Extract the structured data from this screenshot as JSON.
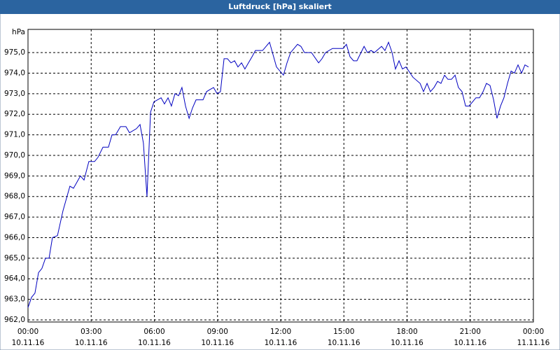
{
  "chart_data": {
    "type": "line",
    "title": "Luftdruck [hPa] skaliert",
    "y_unit": "hPa",
    "x": [
      0,
      0.17,
      0.33,
      0.5,
      0.66,
      0.83,
      1,
      1.16,
      1.4,
      1.66,
      1.99,
      2.16,
      2.49,
      2.66,
      2.89,
      3.16,
      3.32,
      3.56,
      3.82,
      3.99,
      4.16,
      4.39,
      4.65,
      4.82,
      5.15,
      5.32,
      5.48,
      5.65,
      5.82,
      5.98,
      6.32,
      6.48,
      6.65,
      6.81,
      6.98,
      7.15,
      7.31,
      7.48,
      7.65,
      7.81,
      7.98,
      8.31,
      8.48,
      8.64,
      8.81,
      8.98,
      9.14,
      9.31,
      9.47,
      9.64,
      9.81,
      9.97,
      10.14,
      10.3,
      10.47,
      10.64,
      10.8,
      11.14,
      11.47,
      11.8,
      12.13,
      12.3,
      12.47,
      12.8,
      12.96,
      13.13,
      13.46,
      13.8,
      13.96,
      14.13,
      14.46,
      14.63,
      14.96,
      15.12,
      15.29,
      15.46,
      15.62,
      15.96,
      16.12,
      16.29,
      16.45,
      16.79,
      16.95,
      17.12,
      17.29,
      17.45,
      17.62,
      17.78,
      17.95,
      18.28,
      18.62,
      18.78,
      18.95,
      19.11,
      19.28,
      19.45,
      19.61,
      19.78,
      19.94,
      20.11,
      20.28,
      20.44,
      20.61,
      20.78,
      20.94,
      21.11,
      21.27,
      21.44,
      21.61,
      21.77,
      21.94,
      22.11,
      22.27,
      22.44,
      22.6,
      22.77,
      22.94,
      23.1,
      23.27,
      23.44,
      23.6,
      23.77
    ],
    "series": [
      {
        "color": "#0000c0",
        "values": [
          962.6,
          963.1,
          963.3,
          964.3,
          964.5,
          965,
          965,
          966,
          966.1,
          967.3,
          968.5,
          968.4,
          969,
          968.8,
          969.7,
          969.7,
          969.9,
          970.4,
          970.4,
          971,
          971,
          971.4,
          971.4,
          971.1,
          971.3,
          971.5,
          970.6,
          968,
          972.1,
          972.6,
          972.8,
          972.5,
          972.8,
          972.4,
          973,
          972.9,
          973.3,
          972.4,
          971.8,
          972.3,
          972.7,
          972.7,
          973.1,
          973.2,
          973.3,
          973,
          973.1,
          974.7,
          974.7,
          974.5,
          974.6,
          974.3,
          974.5,
          974.2,
          974.5,
          974.8,
          975.1,
          975.1,
          975.5,
          974.3,
          973.9,
          974.5,
          975,
          975.4,
          975.3,
          975,
          975,
          974.5,
          974.7,
          975,
          975.2,
          975.2,
          975.2,
          975.4,
          974.8,
          974.6,
          974.6,
          975.3,
          975,
          975.1,
          975,
          975.3,
          975.1,
          975.5,
          975,
          974.2,
          974.6,
          974.2,
          974.3,
          973.8,
          973.5,
          973.1,
          973.5,
          973.1,
          973.3,
          973.6,
          973.5,
          973.9,
          973.7,
          973.7,
          973.9,
          973.3,
          973.1,
          972.4,
          972.4,
          972.6,
          972.8,
          972.8,
          973.1,
          973.5,
          973.4,
          972.7,
          971.8,
          972.4,
          972.8,
          973.5,
          974.1,
          974,
          974.4,
          974,
          974.4,
          974.3
        ]
      }
    ],
    "xlim": [
      0,
      24
    ],
    "xticks": [
      {
        "value": 0,
        "label": "00:00"
      },
      {
        "value": 3,
        "label": "03:00"
      },
      {
        "value": 6,
        "label": "06:00"
      },
      {
        "value": 9,
        "label": "09:00"
      },
      {
        "value": 12,
        "label": "12:00"
      },
      {
        "value": 15,
        "label": "15:00"
      },
      {
        "value": 18,
        "label": "18:00"
      },
      {
        "value": 21,
        "label": "21:00"
      },
      {
        "value": 24,
        "label": "00:00"
      }
    ],
    "x_tick_dates": [
      "10.11.16",
      "10.11.16",
      "10.11.16",
      "10.11.16",
      "10.11.16",
      "10.11.16",
      "10.11.16",
      "10.11.16",
      "11.11.16"
    ],
    "ylim": [
      962,
      976
    ],
    "yticks": [
      {
        "value": 962,
        "label": "962,0"
      },
      {
        "value": 963,
        "label": "963,0"
      },
      {
        "value": 964,
        "label": "964,0"
      },
      {
        "value": 965,
        "label": "965,0"
      },
      {
        "value": 966,
        "label": "966,0"
      },
      {
        "value": 967,
        "label": "967,0"
      },
      {
        "value": 968,
        "label": "968,0"
      },
      {
        "value": 969,
        "label": "969,0"
      },
      {
        "value": 970,
        "label": "970,0"
      },
      {
        "value": 971,
        "label": "971,0"
      },
      {
        "value": 972,
        "label": "972,0"
      },
      {
        "value": 973,
        "label": "973,0"
      },
      {
        "value": 974,
        "label": "974,0"
      },
      {
        "value": 975,
        "label": "975,0"
      }
    ],
    "grid": true
  }
}
